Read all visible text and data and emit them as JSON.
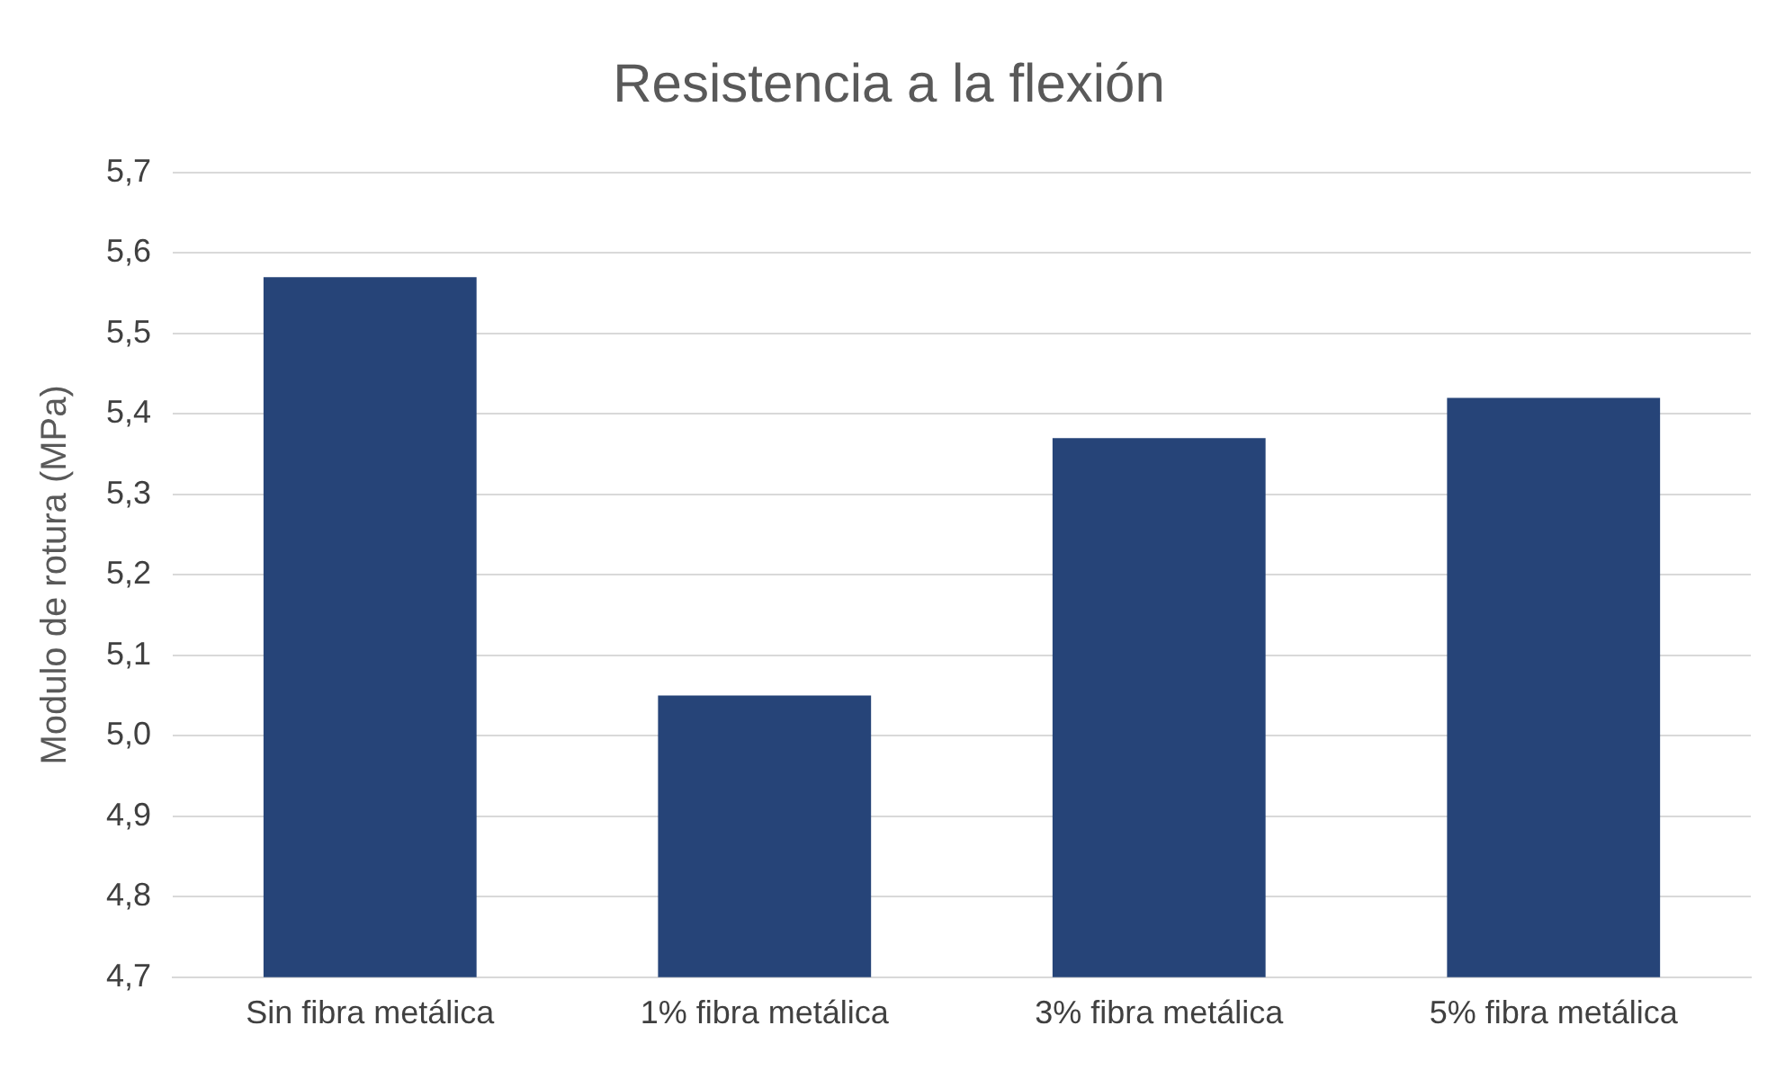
{
  "chart_data": {
    "type": "bar",
    "title": "Resistencia a la flexión",
    "ylabel": "Modulo de rotura (MPa)",
    "categories": [
      "Sin fibra metálica",
      "1% fibra metálica",
      "3% fibra metálica",
      "5% fibra metálica"
    ],
    "values": [
      5.57,
      5.05,
      5.37,
      5.42
    ],
    "color": "#264478",
    "ylim": [
      4.7,
      5.7
    ],
    "yticks": [
      {
        "value": 4.7,
        "label": "4,7"
      },
      {
        "value": 4.8,
        "label": "4,8"
      },
      {
        "value": 4.9,
        "label": "4,9"
      },
      {
        "value": 5.0,
        "label": "5,0"
      },
      {
        "value": 5.1,
        "label": "5,1"
      },
      {
        "value": 5.2,
        "label": "5,2"
      },
      {
        "value": 5.3,
        "label": "5,3"
      },
      {
        "value": 5.4,
        "label": "5,4"
      },
      {
        "value": 5.5,
        "label": "5,5"
      },
      {
        "value": 5.6,
        "label": "5,6"
      },
      {
        "value": 5.7,
        "label": "5,7"
      }
    ],
    "grid": "y",
    "legend": false
  }
}
